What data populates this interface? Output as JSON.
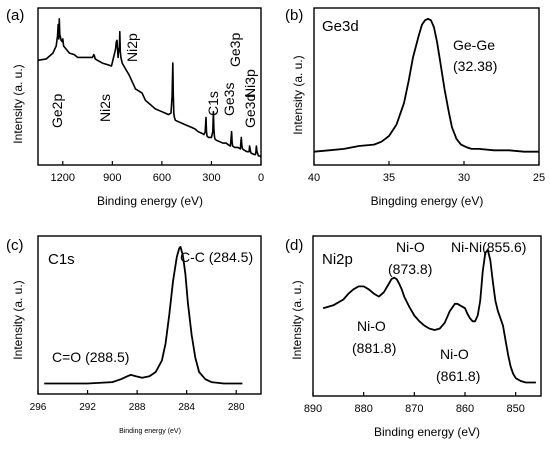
{
  "chart_data": [
    {
      "type": "line",
      "panel_label": "(a)",
      "xlabel": "Binding energy (eV)",
      "ylabel": "Intensity (a. u.)",
      "xlim": [
        1350,
        0
      ],
      "ylim": [
        0,
        1
      ],
      "x_ticks": [
        1200,
        900,
        600,
        300,
        0
      ],
      "peak_labels": [
        {
          "text": "Ge2p",
          "x": 1217
        },
        {
          "text": "Ni2s",
          "x": 1008
        },
        {
          "text": "Ni2p",
          "x": 856
        },
        {
          "text": "C1s",
          "x": 285
        },
        {
          "text": "Ge3s",
          "x": 180
        },
        {
          "text": "Ge3p",
          "x": 125
        },
        {
          "text": "Ni3p",
          "x": 68
        },
        {
          "text": "Ge3d",
          "x": 30
        }
      ],
      "series": [
        {
          "x": [
            1350,
            1300,
            1260,
            1240,
            1232,
            1228,
            1224,
            1221,
            1218,
            1214,
            1210,
            1203,
            1200,
            1195,
            1160,
            1130,
            1110,
            1080,
            1050,
            1020,
            1012,
            1008,
            1004,
            990,
            960,
            930,
            905,
            880,
            876,
            872,
            865,
            862,
            858,
            855,
            852,
            848,
            840,
            820,
            800,
            780,
            760,
            720,
            700,
            660,
            640,
            620,
            600,
            580,
            560,
            545,
            538,
            534,
            531,
            528,
            524,
            518,
            500,
            480,
            460,
            440,
            420,
            400,
            380,
            360,
            345,
            338,
            333,
            330,
            327,
            318,
            300,
            292,
            288,
            285,
            282,
            279,
            270,
            250,
            230,
            210,
            200,
            185,
            182,
            178,
            175,
            172,
            160,
            140,
            125,
            122,
            119,
            116,
            112,
            100,
            85,
            72,
            69,
            66,
            63,
            60,
            40,
            34,
            31,
            28,
            24,
            15,
            5,
            0
          ],
          "y": [
            0.7,
            0.71,
            0.75,
            0.8,
            0.87,
            0.95,
            0.85,
            0.99,
            0.88,
            0.86,
            0.84,
            0.83,
            0.85,
            0.8,
            0.75,
            0.74,
            0.72,
            0.72,
            0.72,
            0.72,
            0.74,
            0.73,
            0.71,
            0.7,
            0.68,
            0.67,
            0.66,
            0.78,
            0.83,
            0.84,
            0.72,
            0.78,
            0.76,
            0.9,
            0.76,
            0.72,
            0.68,
            0.64,
            0.6,
            0.55,
            0.5,
            0.47,
            0.42,
            0.38,
            0.36,
            0.35,
            0.34,
            0.33,
            0.32,
            0.33,
            0.45,
            0.68,
            0.46,
            0.33,
            0.3,
            0.28,
            0.27,
            0.26,
            0.25,
            0.24,
            0.23,
            0.22,
            0.2,
            0.19,
            0.18,
            0.2,
            0.3,
            0.2,
            0.17,
            0.16,
            0.16,
            0.2,
            0.34,
            0.22,
            0.17,
            0.15,
            0.14,
            0.13,
            0.12,
            0.12,
            0.11,
            0.1,
            0.14,
            0.2,
            0.13,
            0.1,
            0.09,
            0.09,
            0.08,
            0.12,
            0.16,
            0.11,
            0.08,
            0.07,
            0.06,
            0.06,
            0.1,
            0.08,
            0.06,
            0.05,
            0.04,
            0.04,
            0.06,
            0.1,
            0.06,
            0.03,
            0.03,
            0.02
          ]
        }
      ]
    },
    {
      "type": "line",
      "panel_label": "(b)",
      "title": "Ge3d",
      "xlabel": "Bingding energy (eV)",
      "ylabel": "Intensity (a. u.)",
      "xlim": [
        40,
        25
      ],
      "ylim": [
        0,
        1
      ],
      "x_ticks": [
        40,
        35,
        30,
        25
      ],
      "annotation_lines": [
        "Ge-Ge",
        "(32.38)"
      ],
      "series": [
        {
          "x": [
            40,
            39,
            38,
            37,
            36,
            35.5,
            35,
            34.5,
            34,
            33.7,
            33.4,
            33,
            32.8,
            32.6,
            32.4,
            32.2,
            32,
            31.8,
            31.6,
            31.3,
            31,
            30.8,
            30.5,
            30.2,
            29.8,
            29.5,
            29,
            28,
            27,
            26,
            25
          ],
          "y": [
            0.06,
            0.07,
            0.08,
            0.1,
            0.11,
            0.13,
            0.17,
            0.25,
            0.4,
            0.55,
            0.72,
            0.88,
            0.95,
            0.98,
            0.99,
            0.98,
            0.93,
            0.83,
            0.7,
            0.5,
            0.33,
            0.23,
            0.15,
            0.11,
            0.09,
            0.08,
            0.08,
            0.07,
            0.07,
            0.06,
            0.06
          ]
        }
      ]
    },
    {
      "type": "line",
      "panel_label": "(c)",
      "title": "C1s",
      "xlabel": "Binding energy (eV)",
      "ylabel": "Intensity (a. u.)",
      "xlim": [
        296,
        278
      ],
      "ylim": [
        0,
        1
      ],
      "x_ticks": [
        296,
        292,
        288,
        284,
        280
      ],
      "annotations": [
        {
          "text": "C-C (284.5)"
        },
        {
          "text": "C=O (288.5)"
        }
      ],
      "series": [
        {
          "x": [
            295.5,
            294,
            292,
            290,
            289.3,
            288.8,
            288.5,
            288.1,
            287.6,
            287,
            286.5,
            286,
            285.7,
            285.4,
            285.1,
            284.8,
            284.6,
            284.5,
            284.3,
            284.1,
            283.9,
            283.6,
            283.3,
            283,
            282.5,
            282,
            281,
            280,
            279.5
          ],
          "y": [
            0.04,
            0.04,
            0.04,
            0.05,
            0.07,
            0.09,
            0.1,
            0.09,
            0.08,
            0.09,
            0.12,
            0.2,
            0.32,
            0.52,
            0.75,
            0.92,
            0.98,
            0.99,
            0.93,
            0.8,
            0.6,
            0.38,
            0.22,
            0.12,
            0.07,
            0.05,
            0.04,
            0.04,
            0.04
          ]
        }
      ]
    },
    {
      "type": "line",
      "panel_label": "(d)",
      "title": "Ni2p",
      "xlabel": "Binding energy (eV)",
      "ylabel": "Intensity (a. u.)",
      "xlim": [
        890,
        845
      ],
      "ylim": [
        0,
        1
      ],
      "x_ticks": [
        890,
        880,
        870,
        860,
        850
      ],
      "annotations": [
        {
          "text": "Ni-O",
          "text2": "(873.8)"
        },
        {
          "text": "Ni-Ni(855.6)"
        },
        {
          "text": "Ni-O",
          "text2": "(881.8)"
        },
        {
          "text": "Ni-O",
          "text2": "(861.8)"
        }
      ],
      "series": [
        {
          "x": [
            888,
            886,
            884,
            883,
            882,
            881,
            880,
            879,
            878,
            877,
            876,
            875,
            874.5,
            874,
            873.5,
            873,
            872.5,
            872,
            871,
            870,
            869,
            868,
            867,
            866,
            865,
            864,
            863,
            862,
            861.5,
            861,
            860,
            859.5,
            859,
            858.5,
            858,
            857.5,
            857,
            856.5,
            856,
            855.5,
            855,
            854.5,
            854,
            853.5,
            853,
            852.5,
            852,
            851.5,
            851,
            850.5,
            850,
            849,
            848,
            847,
            846
          ],
          "y": [
            0.57,
            0.59,
            0.63,
            0.67,
            0.7,
            0.72,
            0.72,
            0.7,
            0.67,
            0.65,
            0.68,
            0.74,
            0.77,
            0.78,
            0.77,
            0.74,
            0.7,
            0.65,
            0.58,
            0.52,
            0.48,
            0.45,
            0.43,
            0.42,
            0.43,
            0.47,
            0.55,
            0.6,
            0.6,
            0.59,
            0.57,
            0.53,
            0.5,
            0.48,
            0.48,
            0.52,
            0.62,
            0.82,
            0.95,
            0.97,
            0.9,
            0.75,
            0.62,
            0.55,
            0.5,
            0.45,
            0.35,
            0.25,
            0.17,
            0.12,
            0.09,
            0.07,
            0.06,
            0.06,
            0.06
          ]
        }
      ]
    }
  ]
}
